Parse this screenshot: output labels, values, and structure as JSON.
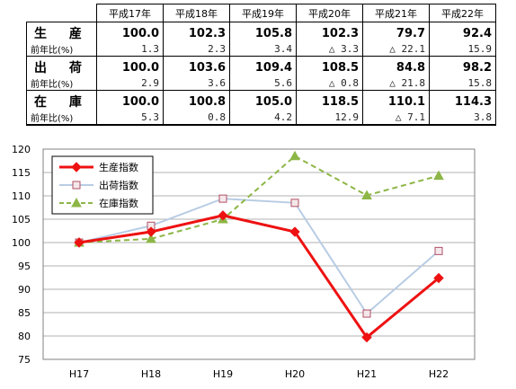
{
  "table": {
    "headers": [
      "平成17年",
      "平成18年",
      "平成19年",
      "平成20年",
      "平成21年",
      "平成22年"
    ],
    "groups": [
      {
        "label": "生 産",
        "sub_label": "前年比(%)",
        "values": [
          "100.0",
          "102.3",
          "105.8",
          "102.3",
          "79.7",
          "92.4"
        ],
        "pcts": [
          "1.3",
          "2.3",
          "3.4",
          "△ 3.3",
          "△ 22.1",
          "15.9"
        ]
      },
      {
        "label": "出 荷",
        "sub_label": "前年比(%)",
        "values": [
          "100.0",
          "103.6",
          "109.4",
          "108.5",
          "84.8",
          "98.2"
        ],
        "pcts": [
          "2.9",
          "3.6",
          "5.6",
          "△ 0.8",
          "△ 21.8",
          "15.8"
        ]
      },
      {
        "label": "在 庫",
        "sub_label": "前年比(%)",
        "values": [
          "100.0",
          "100.8",
          "105.0",
          "118.5",
          "110.1",
          "114.3"
        ],
        "pcts": [
          "5.3",
          "0.8",
          "4.2",
          "12.9",
          "△ 7.1",
          "3.8"
        ]
      }
    ]
  },
  "chart_data": {
    "type": "line",
    "categories": [
      "H17",
      "H18",
      "H19",
      "H20",
      "H21",
      "H22"
    ],
    "ylim": [
      75,
      120
    ],
    "yticks": [
      75,
      80,
      85,
      90,
      95,
      100,
      105,
      110,
      115,
      120
    ],
    "grid": true,
    "legend_position": "top-left",
    "series": [
      {
        "name": "生産指数",
        "values": [
          100.0,
          102.3,
          105.8,
          102.3,
          79.7,
          92.4
        ],
        "color": "#ee1111",
        "marker": "diamond",
        "dash": false
      },
      {
        "name": "出荷指数",
        "values": [
          100.0,
          103.6,
          109.4,
          108.5,
          84.8,
          98.2
        ],
        "color": "#b8cce4",
        "marker": "square",
        "dash": false
      },
      {
        "name": "在庫指数",
        "values": [
          100.0,
          100.8,
          105.0,
          118.5,
          110.1,
          114.3
        ],
        "color": "#8db646",
        "marker": "triangle",
        "dash": true
      }
    ]
  }
}
